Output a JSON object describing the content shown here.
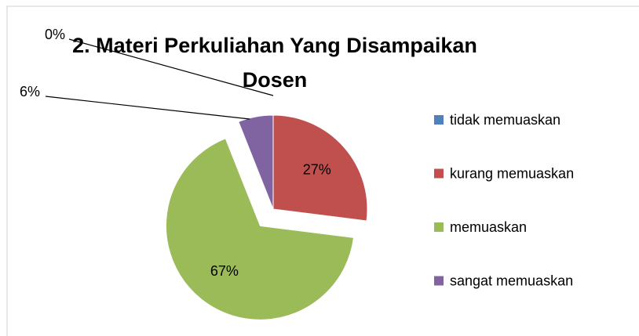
{
  "chart_data": {
    "type": "pie",
    "title": "2. Materi Perkuliahan Yang Disampaikan Dosen",
    "categories": [
      "tidak memuaskan",
      "kurang memuaskan",
      "memuaskan",
      "sangat memuaskan"
    ],
    "values": [
      0,
      27,
      67,
      6
    ],
    "value_labels": [
      "0%",
      "27%",
      "67%",
      "6%"
    ],
    "colors": [
      "#4f81bd",
      "#c0504d",
      "#9bbb59",
      "#8064a2"
    ],
    "legend": "right"
  }
}
